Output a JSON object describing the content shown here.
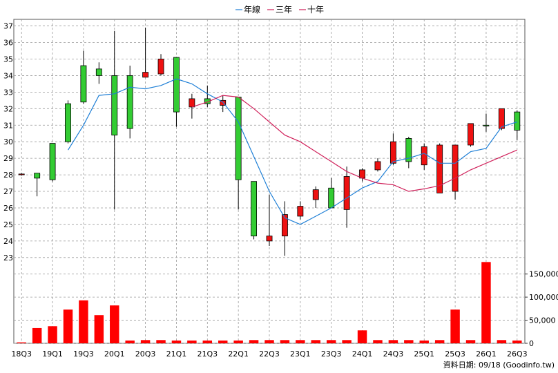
{
  "colors": {
    "year_line": "#1e7fd6",
    "three_year_line": "#d0205a",
    "ten_year_line": "#d0205a",
    "up_candle": "#33cc33",
    "down_candle": "#ee1111",
    "volume_bar": "#ff0000",
    "grid": "#9a9a9a"
  },
  "chart_data": {
    "type": "candlestick",
    "legend": [
      {
        "label": "年線",
        "color": "#1e7fd6"
      },
      {
        "label": "三年",
        "color": "#d0205a"
      },
      {
        "label": "十年",
        "color": "#d0205a"
      }
    ],
    "legend_position": "top",
    "grid": true,
    "price_axis": {
      "side": "left",
      "min": 22.7,
      "max": 37.4,
      "ticks": [
        23,
        24,
        25,
        26,
        27,
        28,
        29,
        30,
        31,
        32,
        33,
        34,
        35,
        36,
        37
      ]
    },
    "volume_axis": {
      "side": "right",
      "min": 0,
      "max": 175000,
      "ticks": [
        0,
        50000,
        100000,
        150000
      ],
      "tick_labels": [
        "0",
        "50,000",
        "100,000",
        "150,000"
      ]
    },
    "x_labels": [
      "18Q3",
      "19Q1",
      "19Q3",
      "20Q1",
      "20Q3",
      "21Q1",
      "21Q3",
      "22Q1",
      "22Q3",
      "23Q1",
      "23Q3",
      "24Q1",
      "24Q3",
      "25Q1",
      "25Q3",
      "26Q1",
      "26Q3"
    ],
    "periods": [
      "18Q3",
      "18Q4",
      "19Q1",
      "19Q2",
      "19Q3",
      "19Q4",
      "20Q1",
      "20Q2",
      "20Q3",
      "20Q4",
      "21Q1",
      "21Q2",
      "21Q3",
      "21Q4",
      "22Q1",
      "22Q2",
      "22Q3",
      "22Q4",
      "23Q1",
      "23Q2",
      "23Q3",
      "23Q4",
      "24Q1",
      "24Q2",
      "24Q3",
      "24Q4",
      "25Q1",
      "25Q2",
      "25Q3",
      "25Q4",
      "26Q1",
      "26Q2",
      "26Q3"
    ],
    "candles": [
      {
        "o": 28.05,
        "h": 28.1,
        "l": 27.95,
        "c": 28.0
      },
      {
        "o": 27.8,
        "h": 28.1,
        "l": 26.7,
        "c": 28.1
      },
      {
        "o": 27.7,
        "h": 29.9,
        "l": 27.6,
        "c": 29.9
      },
      {
        "o": 30.0,
        "h": 32.5,
        "l": 29.9,
        "c": 32.3
      },
      {
        "o": 32.4,
        "h": 35.5,
        "l": 32.3,
        "c": 34.6
      },
      {
        "o": 34.0,
        "h": 34.8,
        "l": 33.5,
        "c": 34.4
      },
      {
        "o": 30.4,
        "h": 36.7,
        "l": 25.9,
        "c": 34.0
      },
      {
        "o": 30.8,
        "h": 34.6,
        "l": 30.2,
        "c": 34.0
      },
      {
        "o": 34.2,
        "h": 36.9,
        "l": 34.0,
        "c": 33.9
      },
      {
        "o": 35.0,
        "h": 35.3,
        "l": 34.0,
        "c": 34.1
      },
      {
        "o": 31.8,
        "h": 35.1,
        "l": 30.9,
        "c": 35.1
      },
      {
        "o": 32.6,
        "h": 32.9,
        "l": 31.4,
        "c": 32.1
      },
      {
        "o": 32.3,
        "h": 33.4,
        "l": 32.1,
        "c": 32.6
      },
      {
        "o": 32.5,
        "h": 32.8,
        "l": 31.8,
        "c": 32.2
      },
      {
        "o": 27.7,
        "h": 32.7,
        "l": 25.9,
        "c": 32.7
      },
      {
        "o": 24.3,
        "h": 27.6,
        "l": 24.1,
        "c": 27.6
      },
      {
        "o": 24.3,
        "h": 26.8,
        "l": 23.7,
        "c": 24.0
      },
      {
        "o": 25.6,
        "h": 26.4,
        "l": 23.1,
        "c": 24.3
      },
      {
        "o": 26.1,
        "h": 26.4,
        "l": 25.3,
        "c": 25.5
      },
      {
        "o": 27.1,
        "h": 27.3,
        "l": 26.0,
        "c": 26.5
      },
      {
        "o": 26.0,
        "h": 27.8,
        "l": 26.0,
        "c": 27.2
      },
      {
        "o": 27.9,
        "h": 28.5,
        "l": 24.8,
        "c": 25.9
      },
      {
        "o": 28.3,
        "h": 28.4,
        "l": 27.6,
        "c": 27.8
      },
      {
        "o": 28.8,
        "h": 29.0,
        "l": 28.2,
        "c": 28.3
      },
      {
        "o": 30.0,
        "h": 30.5,
        "l": 28.6,
        "c": 28.7
      },
      {
        "o": 28.8,
        "h": 30.3,
        "l": 28.4,
        "c": 30.2
      },
      {
        "o": 29.7,
        "h": 29.9,
        "l": 28.3,
        "c": 28.6
      },
      {
        "o": 29.8,
        "h": 29.9,
        "l": 26.9,
        "c": 26.9
      },
      {
        "o": 29.8,
        "h": 29.8,
        "l": 26.5,
        "c": 27.0
      },
      {
        "o": 31.1,
        "h": 31.1,
        "l": 29.7,
        "c": 29.8
      },
      {
        "o": 31.0,
        "h": 31.7,
        "l": 30.6,
        "c": 31.0
      },
      {
        "o": 32.0,
        "h": 32.0,
        "l": 30.7,
        "c": 30.8
      },
      {
        "o": 30.7,
        "h": 31.9,
        "l": 30.1,
        "c": 31.8
      }
    ],
    "volume": [
      2000,
      33000,
      37000,
      73000,
      93000,
      61000,
      82000,
      6000,
      7000,
      7000,
      6000,
      6000,
      6000,
      6000,
      6000,
      7000,
      7000,
      7000,
      7000,
      7000,
      7000,
      7000,
      28000,
      7000,
      7000,
      7000,
      6000,
      7000,
      73000,
      7000,
      176000,
      7000,
      6000
    ],
    "year_line": [
      {
        "i": 3,
        "v": 29.5
      },
      {
        "i": 4,
        "v": 31.0
      },
      {
        "i": 5,
        "v": 32.8
      },
      {
        "i": 6,
        "v": 32.9
      },
      {
        "i": 7,
        "v": 33.3
      },
      {
        "i": 8,
        "v": 33.2
      },
      {
        "i": 9,
        "v": 33.4
      },
      {
        "i": 10,
        "v": 33.8
      },
      {
        "i": 11,
        "v": 33.5
      },
      {
        "i": 12,
        "v": 32.9
      },
      {
        "i": 13,
        "v": 32.4
      },
      {
        "i": 14,
        "v": 31.2
      },
      {
        "i": 15,
        "v": 29.1
      },
      {
        "i": 16,
        "v": 27.0
      },
      {
        "i": 17,
        "v": 25.4
      },
      {
        "i": 18,
        "v": 25.0
      },
      {
        "i": 19,
        "v": 25.5
      },
      {
        "i": 20,
        "v": 26.0
      },
      {
        "i": 21,
        "v": 26.6
      },
      {
        "i": 22,
        "v": 27.2
      },
      {
        "i": 23,
        "v": 27.6
      },
      {
        "i": 24,
        "v": 28.8
      },
      {
        "i": 25,
        "v": 29.0
      },
      {
        "i": 26,
        "v": 29.3
      },
      {
        "i": 27,
        "v": 28.7
      },
      {
        "i": 28,
        "v": 28.7
      },
      {
        "i": 29,
        "v": 29.4
      },
      {
        "i": 30,
        "v": 29.6
      },
      {
        "i": 31,
        "v": 30.9
      },
      {
        "i": 32,
        "v": 31.2
      }
    ],
    "three_year_line": [
      {
        "i": 11,
        "v": 32.1
      },
      {
        "i": 12,
        "v": 32.4
      },
      {
        "i": 13,
        "v": 32.8
      },
      {
        "i": 14,
        "v": 32.7
      },
      {
        "i": 15,
        "v": 32.0
      },
      {
        "i": 16,
        "v": 31.2
      },
      {
        "i": 17,
        "v": 30.4
      },
      {
        "i": 18,
        "v": 30.0
      },
      {
        "i": 19,
        "v": 29.4
      },
      {
        "i": 20,
        "v": 28.8
      },
      {
        "i": 21,
        "v": 28.2
      },
      {
        "i": 22,
        "v": 27.8
      },
      {
        "i": 23,
        "v": 27.5
      },
      {
        "i": 24,
        "v": 27.4
      },
      {
        "i": 25,
        "v": 27.0
      },
      {
        "i": 26,
        "v": 27.15
      },
      {
        "i": 27,
        "v": 27.35
      },
      {
        "i": 28,
        "v": 27.8
      },
      {
        "i": 29,
        "v": 28.3
      },
      {
        "i": 30,
        "v": 28.7
      },
      {
        "i": 31,
        "v": 29.1
      },
      {
        "i": 32,
        "v": 29.5
      }
    ]
  },
  "footer": {
    "credit": "資料日期: 09/18  (Goodinfo.tw)"
  }
}
